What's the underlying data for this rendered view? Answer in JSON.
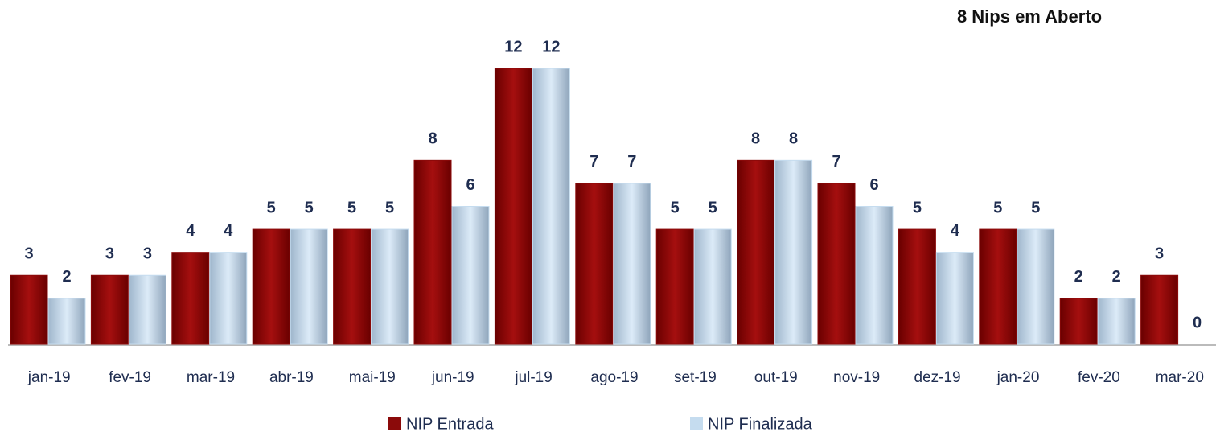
{
  "chart_data": {
    "type": "bar",
    "title": "8 Nips em Aberto",
    "categories": [
      "jan-19",
      "fev-19",
      "mar-19",
      "abr-19",
      "mai-19",
      "jun-19",
      "jul-19",
      "ago-19",
      "set-19",
      "out-19",
      "nov-19",
      "dez-19",
      "jan-20",
      "fev-20",
      "mar-20"
    ],
    "series": [
      {
        "name": "NIP Entrada",
        "color": "#8b0a0a",
        "values": [
          3,
          3,
          4,
          5,
          5,
          8,
          12,
          7,
          5,
          8,
          7,
          5,
          5,
          2,
          3
        ]
      },
      {
        "name": "NIP Finalizada",
        "color": "#c5dcef",
        "values": [
          2,
          3,
          4,
          5,
          5,
          6,
          12,
          7,
          5,
          8,
          6,
          4,
          5,
          2,
          0
        ]
      }
    ],
    "legend": "bottom"
  }
}
